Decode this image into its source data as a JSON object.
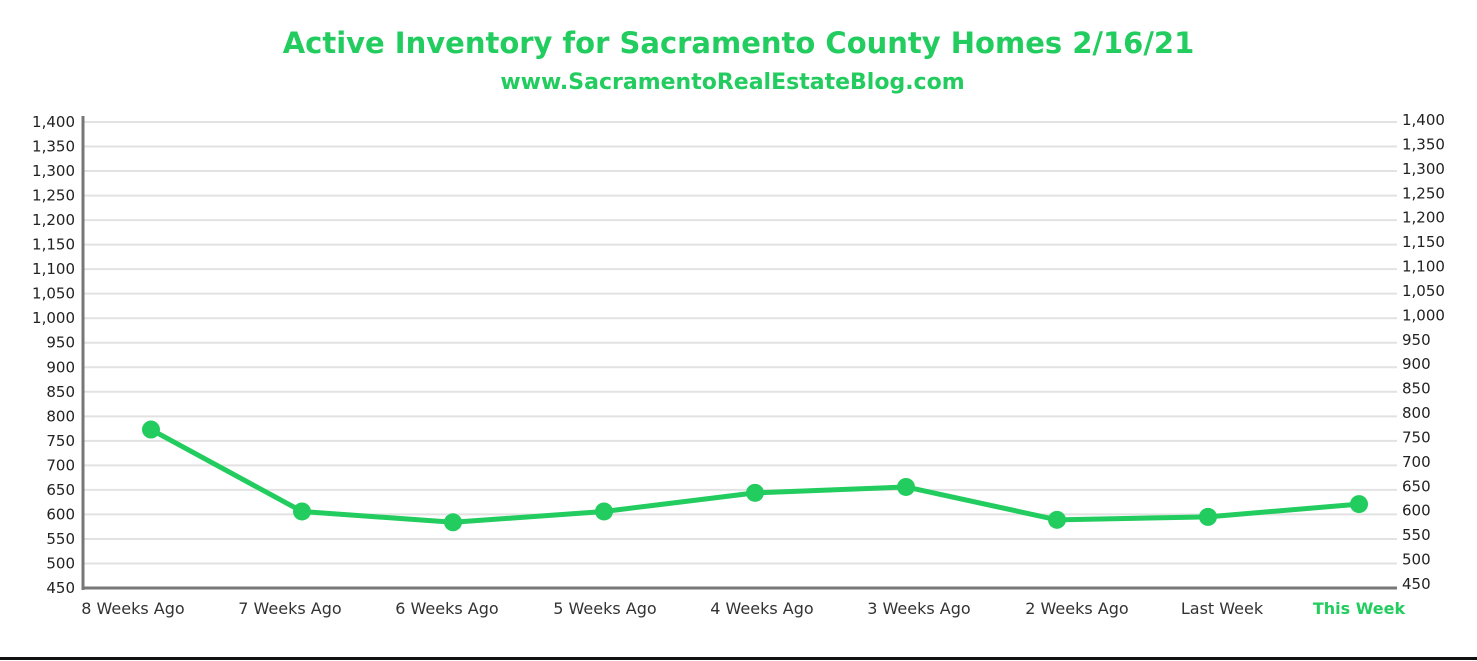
{
  "chart_data": {
    "type": "line",
    "title": "Active Inventory for Sacramento County Homes 2/16/21",
    "subtitle": "www.SacramentoRealEstateBlog.com",
    "categories": [
      "8 Weeks Ago",
      "7 Weeks Ago",
      "6 Weeks Ago",
      "5 Weeks Ago",
      "4 Weeks Ago",
      "3 Weeks Ago",
      "2 Weeks Ago",
      "Last Week",
      "This Week"
    ],
    "highlight_category": "This Week",
    "series": [
      {
        "values": [
          773,
          606,
          584,
          606,
          644,
          656,
          589,
          595,
          621
        ]
      }
    ],
    "ylim": [
      450,
      1400
    ],
    "yticks": [
      "450",
      "500",
      "550",
      "600",
      "650",
      "700",
      "750",
      "800",
      "850",
      "900",
      "950",
      "1,000",
      "1,050",
      "1,100",
      "1,150",
      "1,200",
      "1,250",
      "1,300",
      "1,350",
      "1,400"
    ],
    "dual_y_axis": true,
    "grid": true,
    "line_color": "#22cc5e",
    "highlight_color": "#22cc5e",
    "xlabel": "",
    "ylabel": ""
  }
}
